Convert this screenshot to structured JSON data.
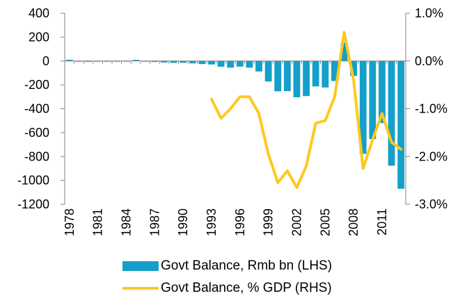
{
  "chart_data": {
    "type": "bar+line",
    "title": "",
    "colors": {
      "bars": "#14A0C8",
      "line": "#FFC820",
      "axis": "#808080"
    },
    "x": [
      1978,
      1979,
      1980,
      1981,
      1982,
      1983,
      1984,
      1985,
      1986,
      1987,
      1988,
      1989,
      1990,
      1991,
      1992,
      1993,
      1994,
      1995,
      1996,
      1997,
      1998,
      1999,
      2000,
      2001,
      2002,
      2003,
      2004,
      2005,
      2006,
      2007,
      2008,
      2009,
      2010,
      2011,
      2012,
      2013
    ],
    "x_tick_labels": [
      "1978",
      "1981",
      "1984",
      "1987",
      "1990",
      "1993",
      "1996",
      "1999",
      "2002",
      "2005",
      "2008",
      "2011"
    ],
    "left_axis": {
      "ylim": [
        -1200,
        400
      ],
      "ticks": [
        "400",
        "200",
        "0",
        "-200",
        "-400",
        "-600",
        "-800",
        "-1000",
        "-1200"
      ]
    },
    "right_axis": {
      "ylim": [
        -3.0,
        1.0
      ],
      "ticks": [
        "1.0%",
        "0.0%",
        "-1.0%",
        "-2.0%",
        "-3.0%"
      ]
    },
    "series": [
      {
        "name": "Govt Balance, Rmb bn (LHS)",
        "kind": "bar",
        "axis": "left",
        "values": [
          10,
          -1,
          -7,
          -3,
          -3,
          -4,
          -4,
          9,
          -2,
          -8,
          -13,
          -16,
          -15,
          -20,
          -26,
          -29,
          -48,
          -56,
          -47,
          -56,
          -88,
          -172,
          -254,
          -252,
          -304,
          -294,
          -213,
          -222,
          -168,
          154,
          -125,
          -778,
          -654,
          -520,
          -877,
          -1070
        ]
      },
      {
        "name": "Govt Balance, % GDP  (RHS)",
        "kind": "line",
        "axis": "right",
        "values": [
          null,
          null,
          null,
          null,
          null,
          null,
          null,
          null,
          null,
          null,
          null,
          null,
          null,
          null,
          null,
          -0.8,
          -1.2,
          -1.0,
          -0.75,
          -0.75,
          -1.1,
          -1.95,
          -2.55,
          -2.3,
          -2.65,
          -2.2,
          -1.3,
          -1.25,
          -0.75,
          0.6,
          -0.4,
          -2.25,
          -1.65,
          -1.1,
          -1.7,
          -1.85
        ]
      }
    ]
  },
  "legend": {
    "bars_label": "Govt Balance, Rmb bn (LHS)",
    "line_label": "Govt Balance, % GDP  (RHS)"
  }
}
